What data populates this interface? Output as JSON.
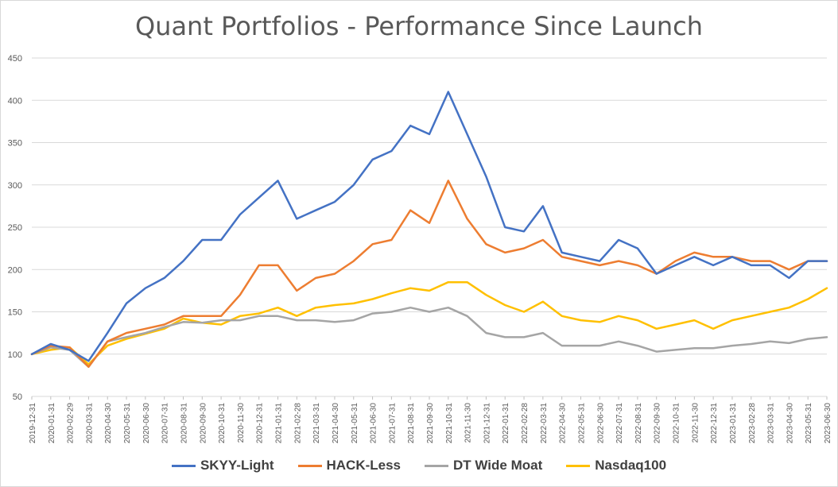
{
  "chart_data": {
    "type": "line",
    "title": "Quant Portfolios - Performance Since Launch",
    "xlabel": "",
    "ylabel": "",
    "ylim": [
      50,
      450
    ],
    "yticks": [
      50,
      100,
      150,
      200,
      250,
      300,
      350,
      400,
      450
    ],
    "grid": "horizontal",
    "legend_position": "bottom",
    "x": [
      "2019-12-31",
      "2020-01-31",
      "2020-02-29",
      "2020-03-31",
      "2020-04-30",
      "2020-05-31",
      "2020-06-30",
      "2020-07-31",
      "2020-08-31",
      "2020-09-30",
      "2020-10-31",
      "2020-11-30",
      "2020-12-31",
      "2021-01-31",
      "2021-02-28",
      "2021-03-31",
      "2021-04-30",
      "2021-05-31",
      "2021-06-30",
      "2021-07-31",
      "2021-08-31",
      "2021-09-30",
      "2021-10-31",
      "2021-11-30",
      "2021-12-31",
      "2022-01-31",
      "2022-02-28",
      "2022-03-31",
      "2022-04-30",
      "2022-05-31",
      "2022-06-30",
      "2022-07-31",
      "2022-08-31",
      "2022-09-30",
      "2022-10-31",
      "2022-11-30",
      "2022-12-31",
      "2023-01-31",
      "2023-02-28",
      "2023-03-31",
      "2023-04-30",
      "2023-05-31",
      "2023-06-30"
    ],
    "series": [
      {
        "name": "SKYY-Light",
        "color": "#4472C4",
        "values": [
          100,
          112,
          105,
          92,
          125,
          160,
          178,
          190,
          210,
          235,
          235,
          265,
          285,
          305,
          260,
          270,
          280,
          300,
          330,
          340,
          370,
          360,
          410,
          360,
          310,
          250,
          245,
          275,
          220,
          215,
          210,
          235,
          225,
          195,
          205,
          215,
          205,
          215,
          205,
          205,
          190,
          210,
          210
        ]
      },
      {
        "name": "HACK-Less",
        "color": "#ED7D31",
        "values": [
          100,
          110,
          108,
          85,
          115,
          125,
          130,
          135,
          145,
          145,
          145,
          170,
          205,
          205,
          175,
          190,
          195,
          210,
          230,
          235,
          270,
          255,
          305,
          260,
          230,
          220,
          225,
          235,
          215,
          210,
          205,
          210,
          205,
          195,
          210,
          220,
          215,
          215,
          210,
          210,
          200,
          210,
          210
        ]
      },
      {
        "name": "DT Wide Moat",
        "color": "#A5A5A5",
        "values": [
          100,
          108,
          105,
          85,
          115,
          120,
          125,
          132,
          138,
          137,
          140,
          140,
          145,
          145,
          140,
          140,
          138,
          140,
          148,
          150,
          155,
          150,
          155,
          145,
          125,
          120,
          120,
          125,
          110,
          110,
          110,
          115,
          110,
          103,
          105,
          107,
          107,
          110,
          112,
          115,
          113,
          118,
          120
        ]
      },
      {
        "name": "Nasdaq100",
        "color": "#FFC000",
        "values": [
          100,
          105,
          108,
          88,
          110,
          118,
          124,
          130,
          142,
          137,
          135,
          145,
          148,
          155,
          145,
          155,
          158,
          160,
          165,
          172,
          178,
          175,
          185,
          185,
          170,
          158,
          150,
          162,
          145,
          140,
          138,
          145,
          140,
          130,
          135,
          140,
          130,
          140,
          145,
          150,
          155,
          165,
          178
        ]
      }
    ]
  }
}
